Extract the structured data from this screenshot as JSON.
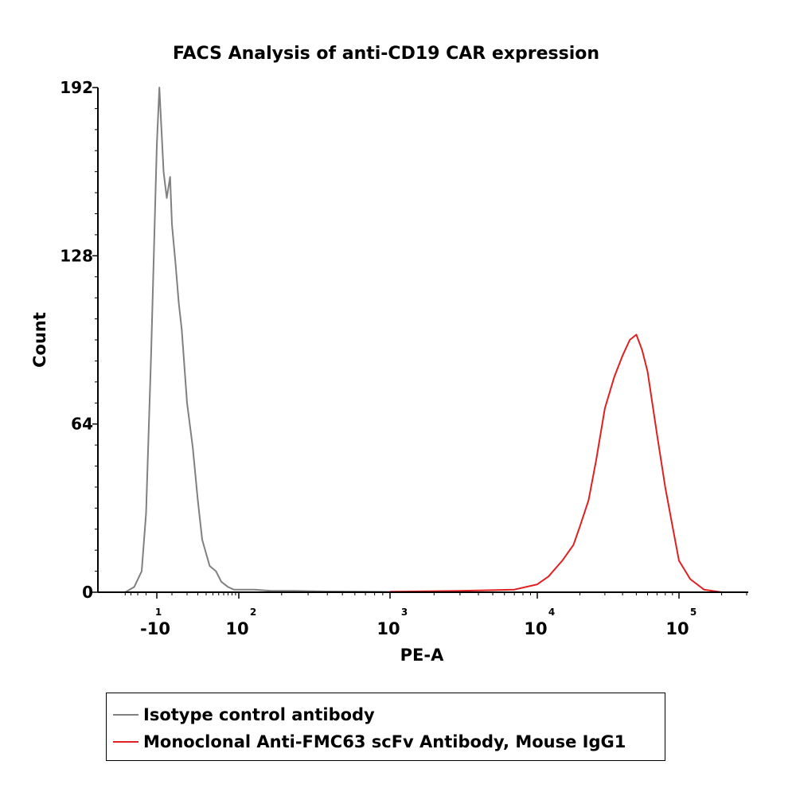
{
  "chart_data": {
    "type": "line",
    "title": "FACS Analysis of anti-CD19 CAR expression",
    "xlabel": "PE-A",
    "ylabel": "Count",
    "ylim": [
      0,
      192
    ],
    "yticks": [
      0,
      64,
      128,
      192
    ],
    "xscale": "biexponential",
    "xticks": [
      {
        "base": "-10",
        "exp": "1",
        "value": -10
      },
      {
        "base": "10",
        "exp": "2",
        "value": 100
      },
      {
        "base": "10",
        "exp": "3",
        "value": 1000
      },
      {
        "base": "10",
        "exp": "4",
        "value": 10000
      },
      {
        "base": "10",
        "exp": "5",
        "value": 100000
      }
    ],
    "xlim": [
      -60,
      250000
    ],
    "legend_position": "bottom",
    "series": [
      {
        "name": "Isotype control antibody",
        "color": "#808080",
        "x": [
          -50,
          -35,
          -25,
          -20,
          -15,
          -10,
          -8,
          -5,
          -3,
          -1,
          0,
          2,
          4,
          6,
          10,
          15,
          20,
          25,
          35,
          45,
          55,
          70,
          85,
          100,
          130,
          170,
          250,
          400,
          700,
          1200
        ],
        "y": [
          0,
          2,
          8,
          30,
          90,
          170,
          192,
          160,
          150,
          158,
          140,
          125,
          110,
          100,
          72,
          55,
          35,
          20,
          10,
          8,
          4,
          2,
          1,
          1,
          1,
          0.5,
          0.5,
          0.3,
          0.2,
          0.1
        ]
      },
      {
        "name": "Monoclonal Anti-FMC63 scFv Antibody, Mouse IgG1",
        "color": "#e02020",
        "x": [
          1000,
          3000,
          7000,
          10000,
          12000,
          15000,
          18000,
          20000,
          23000,
          26000,
          30000,
          35000,
          40000,
          45000,
          50000,
          55000,
          60000,
          70000,
          80000,
          90000,
          100000,
          120000,
          150000,
          200000
        ],
        "y": [
          0.2,
          0.5,
          1,
          3,
          6,
          12,
          18,
          25,
          35,
          50,
          70,
          82,
          90,
          96,
          98,
          92,
          84,
          60,
          40,
          25,
          12,
          5,
          1,
          0
        ]
      }
    ]
  }
}
